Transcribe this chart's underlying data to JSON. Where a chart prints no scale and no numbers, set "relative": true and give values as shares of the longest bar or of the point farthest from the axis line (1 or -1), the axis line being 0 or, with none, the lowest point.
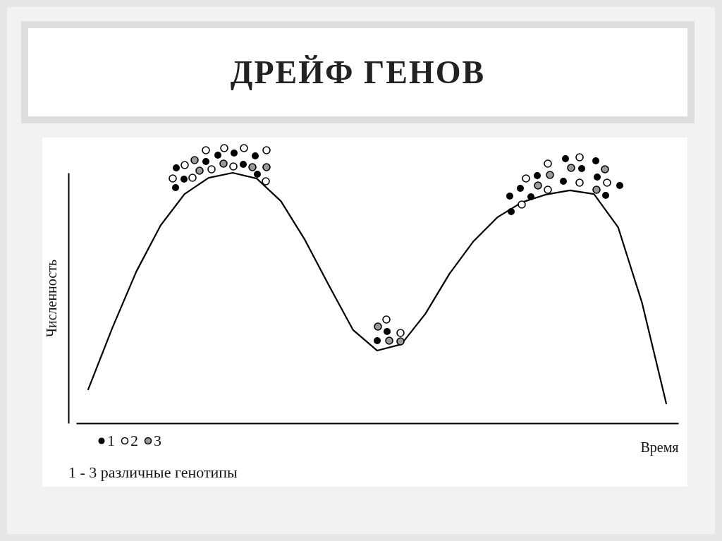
{
  "chart_data": {
    "type": "line",
    "title": "ДРЕЙФ ГЕНОВ",
    "xlabel": "Время",
    "ylabel": "Численность",
    "relative": true,
    "grid": false,
    "annotations": [
      "1",
      "2",
      "3",
      "1 - 3 различные генотипы"
    ],
    "categories": [
      null,
      null,
      null,
      null,
      null,
      null,
      null,
      null,
      null,
      null,
      null,
      null,
      null,
      null,
      null,
      null,
      null,
      null,
      null,
      null,
      null,
      null,
      null,
      null,
      null
    ],
    "series": [
      {
        "color": "#000000",
        "values": [
          0.135,
          0.38,
          0.606,
          0.789,
          0.915,
          0.98,
          1,
          0.977,
          0.887,
          0.732,
          0.549,
          0.372,
          0.29,
          0.315,
          0.437,
          0.597,
          0.727,
          0.823,
          0.882,
          0.913,
          0.93,
          0.915,
          0.783,
          0.479,
          0.079
        ]
      }
    ]
  }
}
